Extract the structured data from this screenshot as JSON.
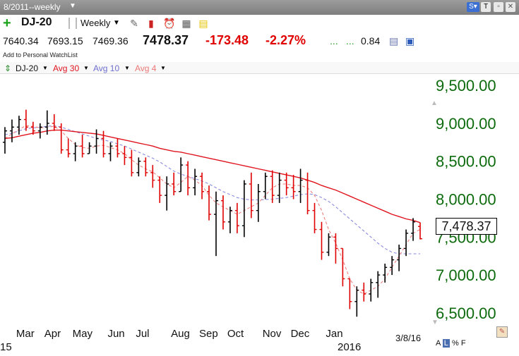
{
  "window": {
    "title": "8/2011--weekly"
  },
  "header": {
    "symbol": "DJ-20",
    "period": "Weekly",
    "open": "7640.34",
    "high": "7693.15",
    "low": "7469.36",
    "last": "7478.37",
    "change": "-173.48",
    "change_pct": "-2.27%",
    "dots": "...",
    "dots2": "...",
    "extra_value": "0.84",
    "watchlist_link": "Add to Personal WatchList"
  },
  "legend": {
    "symbol": "DJ-20",
    "avg30": "Avg 30",
    "avg10": "Avg 10",
    "avg4": "Avg 4"
  },
  "icons": [
    "plus-icon",
    "pencil-icon",
    "alarm-clock-icon",
    "calculator-icon",
    "note-icon",
    "save-icon",
    "info-icon",
    "pen-tool-icon"
  ],
  "colors": {
    "avg30": "#e0141e",
    "avg10": "#8a8ae0",
    "avg4": "#f08080",
    "up_bar": "#000000",
    "down_bar": "#e00000",
    "y_label": "#0d6b0d"
  },
  "footer": {
    "last_price_box": "7,478.37",
    "date": "3/8/16",
    "year_left": "15",
    "year_right": "2016",
    "scale_a": "A",
    "scale_l": "L",
    "scale_pct": "%",
    "scale_f": "F"
  },
  "chart_data": {
    "type": "ohlc",
    "title": "",
    "y_tick_labels": [
      "9,500.00",
      "9,000.00",
      "8,500.00",
      "8,000.00",
      "7,500.00",
      "7,000.00",
      "6,500.00"
    ],
    "y_ticks": [
      9500,
      9000,
      8500,
      8000,
      7500,
      7000,
      6500
    ],
    "ylim": [
      6350,
      9650
    ],
    "x_tick_labels": [
      "Mar",
      "Apr",
      "May",
      "Jun",
      "Jul",
      "Aug",
      "Sep",
      "Oct",
      "Nov",
      "Dec",
      "Jan"
    ],
    "bars": [
      {
        "o": 8750,
        "h": 8950,
        "l": 8600,
        "c": 8900
      },
      {
        "o": 8900,
        "h": 9050,
        "l": 8750,
        "c": 8950
      },
      {
        "o": 8950,
        "h": 9100,
        "l": 8850,
        "c": 9050
      },
      {
        "o": 9050,
        "h": 9180,
        "l": 8900,
        "c": 8950
      },
      {
        "o": 8950,
        "h": 9020,
        "l": 8850,
        "c": 8900
      },
      {
        "o": 8900,
        "h": 9000,
        "l": 8800,
        "c": 8950
      },
      {
        "o": 8950,
        "h": 9170,
        "l": 8850,
        "c": 9000
      },
      {
        "o": 9000,
        "h": 9120,
        "l": 8900,
        "c": 8950
      },
      {
        "o": 8950,
        "h": 9000,
        "l": 8600,
        "c": 8650
      },
      {
        "o": 8650,
        "h": 8800,
        "l": 8550,
        "c": 8600
      },
      {
        "o": 8600,
        "h": 8750,
        "l": 8500,
        "c": 8700
      },
      {
        "o": 8700,
        "h": 8850,
        "l": 8550,
        "c": 8600
      },
      {
        "o": 8600,
        "h": 8750,
        "l": 8600,
        "c": 8700
      },
      {
        "o": 8700,
        "h": 8920,
        "l": 8600,
        "c": 8800
      },
      {
        "o": 8800,
        "h": 8900,
        "l": 8550,
        "c": 8600
      },
      {
        "o": 8600,
        "h": 8750,
        "l": 8500,
        "c": 8700
      },
      {
        "o": 8700,
        "h": 8800,
        "l": 8550,
        "c": 8600
      },
      {
        "o": 8600,
        "h": 8700,
        "l": 8450,
        "c": 8550
      },
      {
        "o": 8550,
        "h": 8650,
        "l": 8300,
        "c": 8350
      },
      {
        "o": 8350,
        "h": 8550,
        "l": 8300,
        "c": 8500
      },
      {
        "o": 8500,
        "h": 8550,
        "l": 8300,
        "c": 8350
      },
      {
        "o": 8350,
        "h": 8450,
        "l": 8150,
        "c": 8250
      },
      {
        "o": 8250,
        "h": 8300,
        "l": 7950,
        "c": 8050
      },
      {
        "o": 8050,
        "h": 8300,
        "l": 7850,
        "c": 8200
      },
      {
        "o": 8200,
        "h": 8350,
        "l": 8050,
        "c": 8100
      },
      {
        "o": 8100,
        "h": 8550,
        "l": 8100,
        "c": 8450
      },
      {
        "o": 8450,
        "h": 8500,
        "l": 8050,
        "c": 8150
      },
      {
        "o": 8150,
        "h": 8400,
        "l": 8050,
        "c": 8300
      },
      {
        "o": 8300,
        "h": 8350,
        "l": 8000,
        "c": 8100
      },
      {
        "o": 8100,
        "h": 8180,
        "l": 7720,
        "c": 7800
      },
      {
        "o": 7800,
        "h": 8100,
        "l": 7250,
        "c": 7980
      },
      {
        "o": 7980,
        "h": 8050,
        "l": 7600,
        "c": 7700
      },
      {
        "o": 7700,
        "h": 7900,
        "l": 7550,
        "c": 7850
      },
      {
        "o": 7850,
        "h": 7950,
        "l": 7550,
        "c": 7650
      },
      {
        "o": 7650,
        "h": 8250,
        "l": 7500,
        "c": 8200
      },
      {
        "o": 8200,
        "h": 8350,
        "l": 7750,
        "c": 7850
      },
      {
        "o": 7850,
        "h": 8200,
        "l": 7700,
        "c": 8100
      },
      {
        "o": 8100,
        "h": 8350,
        "l": 8000,
        "c": 8300
      },
      {
        "o": 8300,
        "h": 8380,
        "l": 7950,
        "c": 8050
      },
      {
        "o": 8050,
        "h": 8350,
        "l": 7950,
        "c": 8250
      },
      {
        "o": 8250,
        "h": 8350,
        "l": 8050,
        "c": 8150
      },
      {
        "o": 8150,
        "h": 8320,
        "l": 8000,
        "c": 8100
      },
      {
        "o": 8100,
        "h": 8400,
        "l": 7950,
        "c": 8250
      },
      {
        "o": 8250,
        "h": 8350,
        "l": 7800,
        "c": 7850
      },
      {
        "o": 7850,
        "h": 7950,
        "l": 7550,
        "c": 7600
      },
      {
        "o": 7600,
        "h": 7700,
        "l": 7200,
        "c": 7300
      },
      {
        "o": 7300,
        "h": 7550,
        "l": 7250,
        "c": 7500
      },
      {
        "o": 7500,
        "h": 7550,
        "l": 7150,
        "c": 7350
      },
      {
        "o": 7350,
        "h": 7350,
        "l": 6850,
        "c": 6950
      },
      {
        "o": 6950,
        "h": 6950,
        "l": 6550,
        "c": 6650
      },
      {
        "o": 6650,
        "h": 6850,
        "l": 6450,
        "c": 6800
      },
      {
        "o": 6800,
        "h": 6900,
        "l": 6650,
        "c": 6750
      },
      {
        "o": 6750,
        "h": 6950,
        "l": 6650,
        "c": 6900
      },
      {
        "o": 6900,
        "h": 7050,
        "l": 6700,
        "c": 7000
      },
      {
        "o": 7000,
        "h": 7150,
        "l": 6900,
        "c": 7100
      },
      {
        "o": 7100,
        "h": 7250,
        "l": 7000,
        "c": 7200
      },
      {
        "o": 7200,
        "h": 7400,
        "l": 7050,
        "c": 7350
      },
      {
        "o": 7350,
        "h": 7600,
        "l": 7250,
        "c": 7550
      },
      {
        "o": 7550,
        "h": 7750,
        "l": 7450,
        "c": 7700
      },
      {
        "o": 7640,
        "h": 7693,
        "l": 7469,
        "c": 7478
      }
    ],
    "avg30": [
      8800,
      8810,
      8830,
      8850,
      8870,
      8880,
      8900,
      8910,
      8910,
      8900,
      8890,
      8880,
      8870,
      8860,
      8840,
      8820,
      8800,
      8780,
      8760,
      8740,
      8720,
      8700,
      8670,
      8650,
      8630,
      8620,
      8600,
      8580,
      8560,
      8540,
      8520,
      8500,
      8480,
      8460,
      8440,
      8420,
      8400,
      8380,
      8360,
      8340,
      8320,
      8300,
      8280,
      8250,
      8220,
      8180,
      8150,
      8120,
      8080,
      8040,
      8000,
      7960,
      7920,
      7880,
      7840,
      7800,
      7770,
      7740,
      7720,
      7690
    ],
    "avg10": [
      8850,
      8870,
      8900,
      8930,
      8940,
      8950,
      8960,
      8970,
      8950,
      8920,
      8890,
      8860,
      8830,
      8800,
      8780,
      8760,
      8730,
      8700,
      8660,
      8620,
      8580,
      8540,
      8490,
      8430,
      8370,
      8330,
      8300,
      8270,
      8240,
      8200,
      8150,
      8100,
      8060,
      8020,
      8000,
      7990,
      7990,
      7995,
      8000,
      8010,
      8020,
      8040,
      8060,
      8070,
      8060,
      8020,
      7970,
      7900,
      7820,
      7740,
      7660,
      7580,
      7500,
      7420,
      7350,
      7300,
      7280,
      7280,
      7280,
      7280
    ],
    "avg4": [
      8800,
      8860,
      8920,
      8970,
      8960,
      8940,
      8950,
      8960,
      8900,
      8800,
      8720,
      8680,
      8670,
      8700,
      8710,
      8680,
      8650,
      8600,
      8520,
      8450,
      8400,
      8360,
      8280,
      8200,
      8150,
      8220,
      8300,
      8250,
      8180,
      8050,
      7950,
      7900,
      7850,
      7800,
      7850,
      7900,
      7950,
      8050,
      8150,
      8200,
      8200,
      8180,
      8180,
      8150,
      8050,
      7850,
      7600,
      7420,
      7200,
      6950,
      6800,
      6750,
      6800,
      6850,
      6950,
      7100,
      7250,
      7400,
      7550,
      7600
    ]
  }
}
